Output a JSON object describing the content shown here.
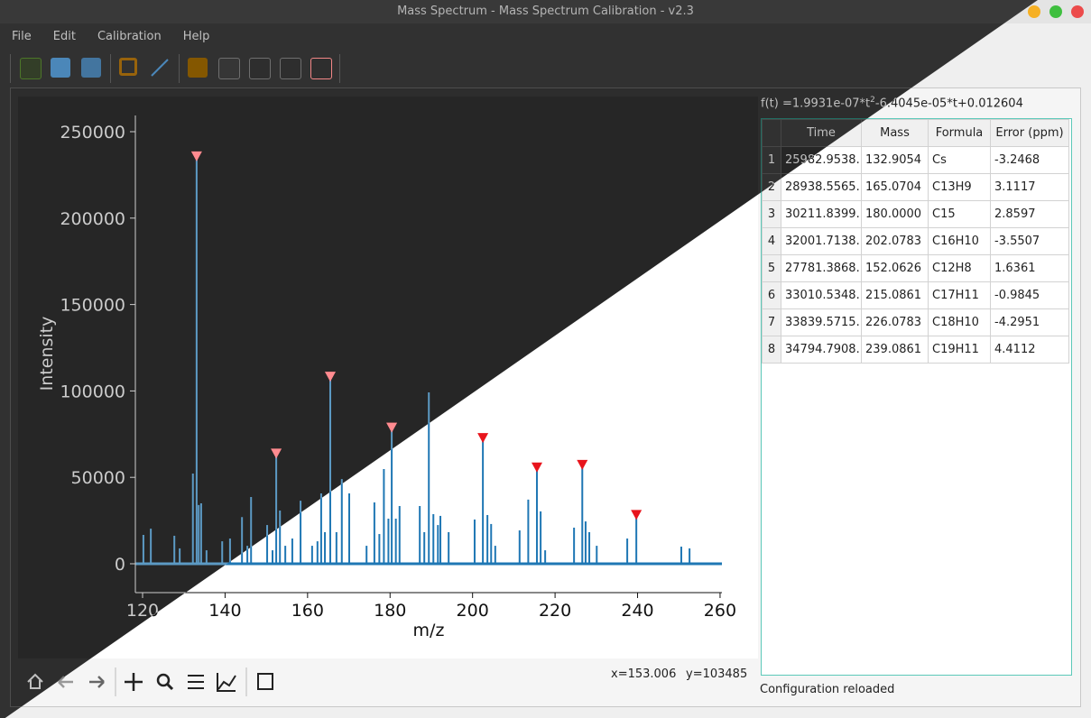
{
  "window": {
    "title": "Mass Spectrum - Mass Spectrum Calibration - v2.3"
  },
  "menu": [
    "File",
    "Edit",
    "Calibration",
    "Help"
  ],
  "chart_data": {
    "type": "stem",
    "xlabel": "m/z",
    "ylabel": "Intensity",
    "xlim": [
      118.25,
      260.45
    ],
    "ylim": [
      -16700,
      259400
    ],
    "xticks": [
      120,
      140,
      160,
      180,
      200,
      220,
      240,
      260
    ],
    "yticks": [
      0,
      50000,
      100000,
      150000,
      200000,
      250000
    ],
    "color": "#1f77b4",
    "x": [
      120.2,
      122,
      127.7,
      129,
      132.2,
      133.1,
      133.6,
      134.2,
      135.5,
      139.3,
      141.2,
      144.1,
      145.4,
      146.3,
      150.2,
      151.5,
      152.4,
      153.3,
      154.6,
      156.3,
      158.3,
      161.1,
      162.4,
      163.3,
      164.2,
      165.5,
      167,
      168.3,
      170.1,
      174.3,
      176.2,
      177.4,
      178.5,
      179.6,
      180.4,
      181.4,
      182.3,
      187.2,
      188.3,
      189.4,
      190.5,
      191.6,
      192.2,
      194.2,
      200.5,
      202.5,
      203.6,
      204.5,
      205.5,
      211.4,
      213.5,
      215.6,
      216.5,
      217.6,
      224.6,
      226.6,
      227.4,
      228.3,
      230.1,
      237.5,
      239.7,
      250.6,
      252.6
    ],
    "values": [
      16700,
      20300,
      16200,
      8900,
      52200,
      237500,
      34000,
      35000,
      7800,
      13000,
      14600,
      27000,
      10400,
      38600,
      22400,
      7800,
      65200,
      30800,
      10400,
      14600,
      36500,
      10400,
      13000,
      40700,
      18300,
      108600,
      18300,
      49000,
      40700,
      10400,
      35500,
      17200,
      54800,
      26100,
      80400,
      26100,
      33400,
      33400,
      18300,
      99200,
      28700,
      22400,
      27700,
      18300,
      25600,
      73600,
      28200,
      23000,
      10400,
      19300,
      37100,
      56900,
      30300,
      7800,
      20900,
      58500,
      24500,
      18300,
      10400,
      14600,
      28700,
      9900,
      8900
    ],
    "markers": {
      "color": "#e8141c",
      "x": [
        133.1,
        152.4,
        165.5,
        180.4,
        202.5,
        215.6,
        226.6,
        239.7
      ],
      "values": [
        236000,
        64000,
        108500,
        79000,
        73000,
        56000,
        57500,
        28500
      ]
    }
  },
  "cursor": {
    "x": "x=153.006",
    "y": "y=103485"
  },
  "calibration": {
    "formula": [
      "f(t) =1.9931e-07*t",
      "2",
      "-6.4045e-05*t+0.012604"
    ],
    "table": {
      "columns": [
        "Time",
        "Mass",
        "Formula",
        "Error (ppm)"
      ],
      "row_headers": [
        "1",
        "2",
        "3",
        "4",
        "5",
        "6",
        "7",
        "8"
      ],
      "rows": [
        [
          "25982.9538...",
          "132.9054",
          "Cs",
          "-3.2468"
        ],
        [
          "28938.5565...",
          "165.0704",
          "C13H9",
          "3.1117"
        ],
        [
          "30211.8399...",
          "180.0000",
          "C15",
          "2.8597"
        ],
        [
          "32001.7138...",
          "202.0783",
          "C16H10",
          "-3.5507"
        ],
        [
          "27781.3868...",
          "152.0626",
          "C12H8",
          "1.6361"
        ],
        [
          "33010.5348...",
          "215.0861",
          "C17H11",
          "-0.9845"
        ],
        [
          "33839.5715...",
          "226.0783",
          "C18H10",
          "-4.2951"
        ],
        [
          "34794.7908...",
          "239.0861",
          "C19H11",
          "4.4112"
        ]
      ]
    }
  },
  "statusbar": "Configuration reloaded"
}
